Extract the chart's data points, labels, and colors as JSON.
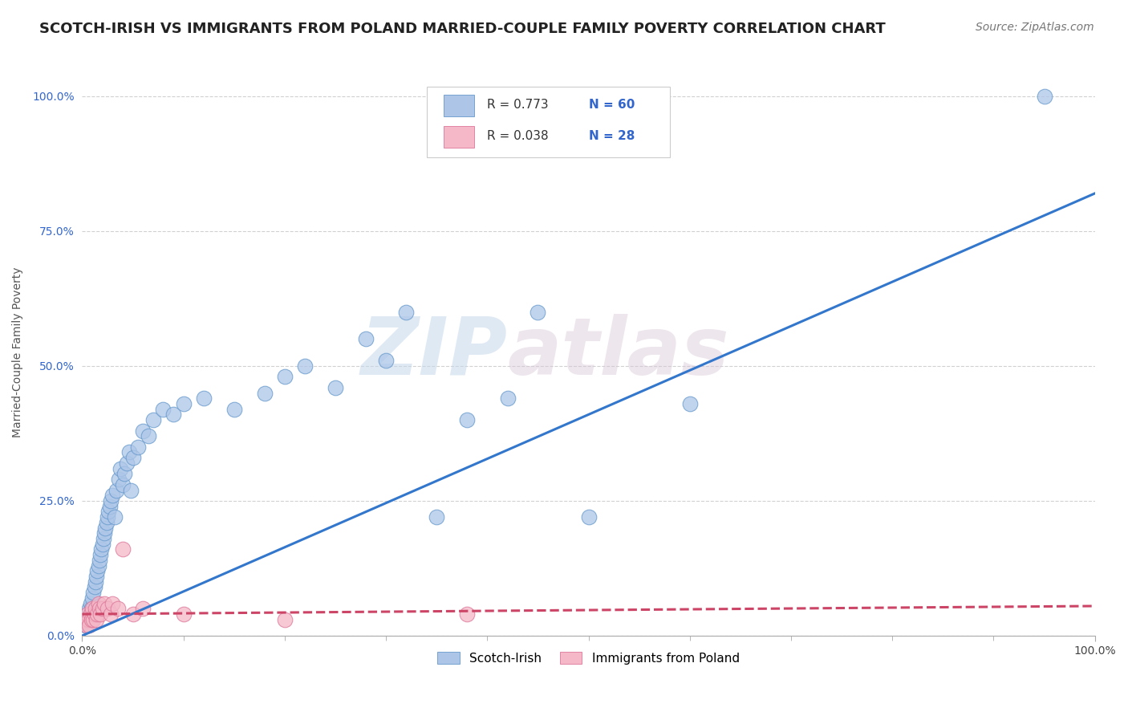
{
  "title": "SCOTCH-IRISH VS IMMIGRANTS FROM POLAND MARRIED-COUPLE FAMILY POVERTY CORRELATION CHART",
  "source": "Source: ZipAtlas.com",
  "ylabel": "Married-Couple Family Poverty",
  "xlim": [
    0,
    1
  ],
  "ylim": [
    0,
    1.05
  ],
  "xtick_labels": [
    "0.0%",
    "100.0%"
  ],
  "xtick_positions": [
    0,
    1
  ],
  "ytick_labels": [
    "0.0%",
    "25.0%",
    "50.0%",
    "75.0%",
    "100.0%"
  ],
  "ytick_positions": [
    0,
    0.25,
    0.5,
    0.75,
    1.0
  ],
  "background_color": "#ffffff",
  "grid_color": "#cccccc",
  "watermark_text": "ZIP",
  "watermark_text2": "atlas",
  "series": [
    {
      "name": "Scotch-Irish",
      "R": "0.773",
      "N": "60",
      "color": "#adc6e8",
      "edge_color": "#6699cc",
      "x": [
        0.003,
        0.004,
        0.005,
        0.006,
        0.007,
        0.008,
        0.009,
        0.01,
        0.011,
        0.012,
        0.013,
        0.014,
        0.015,
        0.016,
        0.017,
        0.018,
        0.019,
        0.02,
        0.021,
        0.022,
        0.023,
        0.024,
        0.025,
        0.026,
        0.027,
        0.028,
        0.03,
        0.032,
        0.034,
        0.036,
        0.038,
        0.04,
        0.042,
        0.044,
        0.046,
        0.048,
        0.05,
        0.055,
        0.06,
        0.065,
        0.07,
        0.08,
        0.09,
        0.1,
        0.12,
        0.15,
        0.18,
        0.2,
        0.22,
        0.25,
        0.28,
        0.3,
        0.32,
        0.35,
        0.38,
        0.42,
        0.45,
        0.5,
        0.6,
        0.95
      ],
      "y": [
        0.02,
        0.03,
        0.04,
        0.03,
        0.05,
        0.06,
        0.05,
        0.07,
        0.08,
        0.09,
        0.1,
        0.11,
        0.12,
        0.13,
        0.14,
        0.15,
        0.16,
        0.17,
        0.18,
        0.19,
        0.2,
        0.21,
        0.22,
        0.23,
        0.24,
        0.25,
        0.26,
        0.22,
        0.27,
        0.29,
        0.31,
        0.28,
        0.3,
        0.32,
        0.34,
        0.27,
        0.33,
        0.35,
        0.38,
        0.37,
        0.4,
        0.42,
        0.41,
        0.43,
        0.44,
        0.42,
        0.45,
        0.48,
        0.5,
        0.46,
        0.55,
        0.51,
        0.6,
        0.22,
        0.4,
        0.44,
        0.6,
        0.22,
        0.43,
        1.0
      ],
      "trendline_color": "#3377cc",
      "trendline_style": "-",
      "trendline_x": [
        0.0,
        1.0
      ],
      "trendline_y": [
        0.0,
        0.82
      ]
    },
    {
      "name": "Immigrants from Poland",
      "R": "0.038",
      "N": "28",
      "color": "#f4b8c8",
      "edge_color": "#dd7799",
      "x": [
        0.003,
        0.004,
        0.005,
        0.006,
        0.007,
        0.008,
        0.009,
        0.01,
        0.011,
        0.012,
        0.013,
        0.014,
        0.015,
        0.016,
        0.017,
        0.018,
        0.02,
        0.022,
        0.025,
        0.028,
        0.03,
        0.035,
        0.04,
        0.05,
        0.06,
        0.1,
        0.2,
        0.38
      ],
      "y": [
        0.03,
        0.02,
        0.04,
        0.03,
        0.02,
        0.04,
        0.03,
        0.05,
        0.03,
        0.04,
        0.05,
        0.03,
        0.04,
        0.06,
        0.05,
        0.04,
        0.05,
        0.06,
        0.05,
        0.04,
        0.06,
        0.05,
        0.16,
        0.04,
        0.05,
        0.04,
        0.03,
        0.04
      ],
      "trendline_color": "#cc4466",
      "trendline_style": "--",
      "trendline_x": [
        0.0,
        1.0
      ],
      "trendline_y": [
        0.04,
        0.055
      ]
    }
  ],
  "legend_R_color": "#333333",
  "legend_N_color": "#3366cc",
  "legend_box_colors": [
    "#adc6e8",
    "#f4b8c8"
  ],
  "legend_box_edge_colors": [
    "#6699cc",
    "#dd7799"
  ],
  "title_fontsize": 13,
  "axis_label_fontsize": 10,
  "tick_fontsize": 10,
  "source_fontsize": 10
}
